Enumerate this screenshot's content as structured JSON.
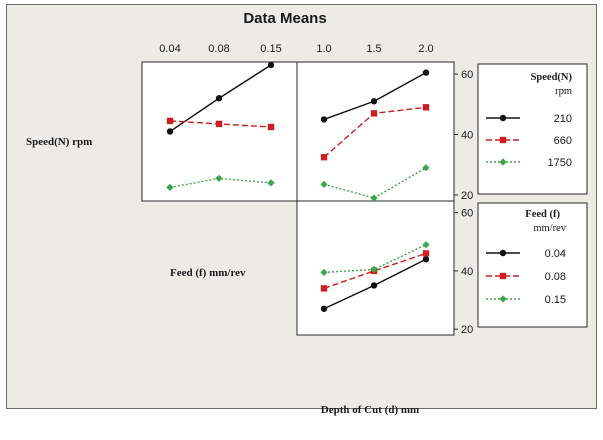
{
  "chart_data": {
    "type": "line",
    "title": "Data Means",
    "factors": [
      {
        "name": "Speed(N) rpm",
        "levels": [
          "210",
          "660",
          "1750"
        ]
      },
      {
        "name": "Feed (f) mm/rev",
        "levels": [
          "0.04",
          "0.08",
          "0.15"
        ]
      },
      {
        "name": "Depth of Cut (d) mm",
        "levels": [
          "1.0",
          "1.5",
          "2.0"
        ]
      }
    ],
    "y_ticks": [
      "20",
      "40",
      "60"
    ],
    "ylim": [
      18,
      64
    ],
    "panels": [
      {
        "id": "speed-by-feed",
        "x_factor": "Feed (f) mm/rev",
        "trace_factor": "Speed(N) rpm",
        "series": [
          {
            "name": "210",
            "values": [
              41,
              52,
              63
            ]
          },
          {
            "name": "660",
            "values": [
              44.5,
              43.5,
              42.5
            ]
          },
          {
            "name": "1750",
            "values": [
              22.5,
              25.5,
              24
            ]
          }
        ]
      },
      {
        "id": "speed-by-depth",
        "x_factor": "Depth of Cut (d) mm",
        "trace_factor": "Speed(N) rpm",
        "series": [
          {
            "name": "210",
            "values": [
              45,
              51,
              60.5
            ]
          },
          {
            "name": "660",
            "values": [
              32.5,
              47,
              49
            ]
          },
          {
            "name": "1750",
            "values": [
              23.5,
              19,
              29
            ]
          }
        ]
      },
      {
        "id": "feed-by-depth",
        "x_factor": "Depth of Cut (d) mm",
        "trace_factor": "Feed (f) mm/rev",
        "series": [
          {
            "name": "0.04",
            "values": [
              27,
              35,
              44
            ]
          },
          {
            "name": "0.08",
            "values": [
              34,
              40,
              46
            ]
          },
          {
            "name": "0.15",
            "values": [
              39.5,
              40.5,
              49
            ]
          }
        ]
      }
    ],
    "legends": [
      {
        "id": "speed-legend",
        "title_lines": [
          "Speed(N)",
          "rpm"
        ],
        "entries": [
          "210",
          "660",
          "1750"
        ]
      },
      {
        "id": "feed-legend",
        "title_lines": [
          "Feed (f)",
          "mm/rev"
        ],
        "entries": [
          "0.04",
          "0.08",
          "0.15"
        ]
      }
    ],
    "series_styles": [
      {
        "color": "#111111",
        "marker": "circle",
        "dash": "solid"
      },
      {
        "color": "#cc1f1f",
        "marker": "square",
        "dash": "dashed"
      },
      {
        "color": "#3aa64a",
        "marker": "diamond",
        "dash": "dotted"
      }
    ],
    "grid": false
  }
}
